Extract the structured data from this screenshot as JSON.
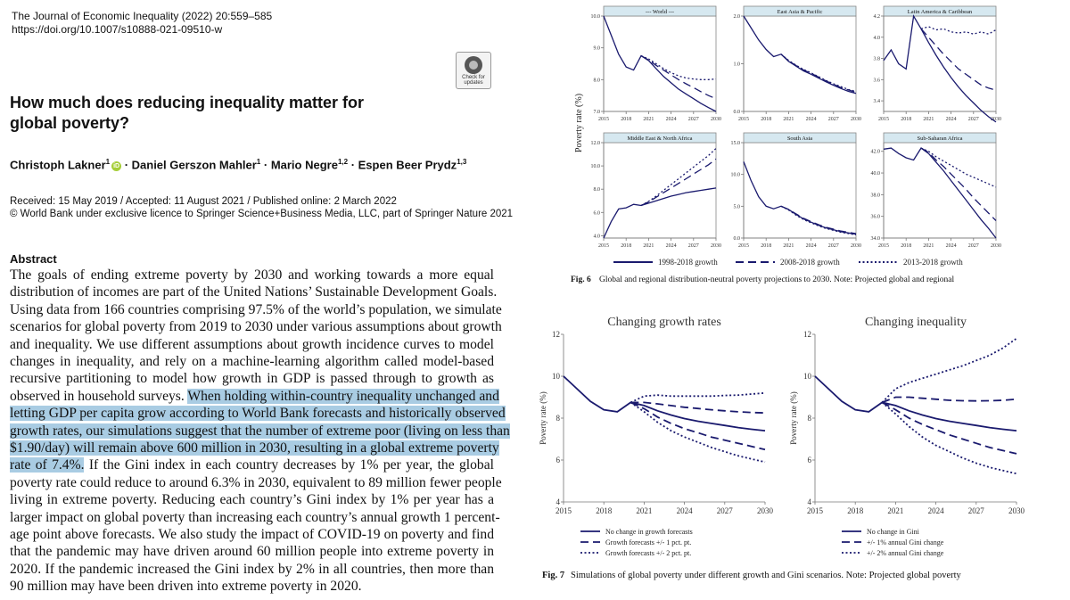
{
  "journal": "The Journal of Economic Inequality (2022) 20:559–585",
  "doi": "https://doi.org/10.1007/s10888-021-09510-w",
  "badge": "Check for updates",
  "title": "How much does reducing inequality matter for global poverty?",
  "authors": [
    {
      "name": "Christoph Lakner",
      "sup": "1",
      "orcid": true
    },
    {
      "name": "Daniel Gerszon Mahler",
      "sup": "1"
    },
    {
      "name": "Mario Negre",
      "sup": "1,2"
    },
    {
      "name": "Espen Beer Prydz",
      "sup": "1,3"
    }
  ],
  "orcid_mark": "iD",
  "author_sep": " · ",
  "received": "Received: 15 May 2019 / Accepted: 11 August 2021 / Published online: 2 March 2022",
  "license": "© World Bank under exclusive licence to Springer Science+Business Media, LLC, part of Springer Nature 2021",
  "abstract_heading": "Abstract",
  "abstract_lines": [
    [
      {
        "t": "The goals of ending extreme poverty by 2030 and working towards a more equal"
      }
    ],
    [
      {
        "t": "distribution of incomes are part of the United Nations’ Sustainable Development Goals."
      }
    ],
    [
      {
        "t": "Using data from 166 countries comprising 97.5% of the world’s population, we simulate"
      }
    ],
    [
      {
        "t": "scenarios for global poverty from 2019 to 2030 under various assumptions about growth"
      }
    ],
    [
      {
        "t": "and inequality. We use different assumptions about growth incidence curves to model"
      }
    ],
    [
      {
        "t": "changes in inequality, and rely on a machine-learning algorithm called model-based"
      }
    ],
    [
      {
        "t": "recursive partitioning to model how growth in GDP is passed through to growth as"
      }
    ],
    [
      {
        "t": "observed in household surveys. "
      },
      {
        "t": "When holding within-country inequality unchanged and",
        "hl": true
      }
    ],
    [
      {
        "t": "letting GDP per capita grow according to World Bank forecasts and historically observed",
        "hl": true
      }
    ],
    [
      {
        "t": "growth rates, our simulations suggest that the number of extreme poor (living on less than",
        "hl": true
      }
    ],
    [
      {
        "t": "$1.90/day) will remain above 600 million in 2030, resulting in a global extreme poverty",
        "hl": true
      }
    ],
    [
      {
        "t": "rate of 7.4%.",
        "hl": true
      },
      {
        "t": " If the Gini index in each country decreases by 1% per year, the global"
      }
    ],
    [
      {
        "t": "poverty rate could reduce to around 6.3% in 2030, equivalent to 89 million fewer people"
      }
    ],
    [
      {
        "t": "living in extreme poverty. Reducing each country’s Gini index by 1% per year has a"
      }
    ],
    [
      {
        "t": "larger impact on global poverty than increasing each country’s annual growth 1 percent-"
      }
    ],
    [
      {
        "t": "age point above forecasts. We also study the impact of COVID-19 on poverty and find"
      }
    ],
    [
      {
        "t": "that the pandemic may have driven around 60 million people into extreme poverty in"
      }
    ],
    [
      {
        "t": "2020. If the pandemic increased the Gini index by 2% in all countries, then more than"
      }
    ],
    [
      {
        "t": "90 million may have been driven into extreme poverty in 2020."
      }
    ]
  ],
  "fig6": {
    "ylabel": "Poverty rate (%)",
    "caption_label": "Fig. 6",
    "caption": "Global and regional distribution-neutral poverty projections to 2030. Note: Projected global and regional",
    "legend": [
      "1998-2018 growth",
      "2008-2018 growth",
      "2013-2018 growth"
    ],
    "xticks": [
      "2015",
      "2018",
      "2021",
      "2024",
      "2027",
      "2030"
    ]
  },
  "fig7": {
    "caption_label": "Fig. 7",
    "caption": "Simulations of global poverty under different growth and Gini scenarios. Note: Projected global poverty",
    "ylabel": "Poverty rate (%)",
    "xticks": [
      "2015",
      "2018",
      "2021",
      "2024",
      "2027",
      "2030"
    ],
    "yticks": [
      "4",
      "6",
      "8",
      "10",
      "12"
    ]
  },
  "chart_data": [
    {
      "type": "line",
      "title": "--- World ---",
      "x": [
        2015,
        2016,
        2017,
        2018,
        2019,
        2020,
        2021,
        2022,
        2023,
        2024,
        2025,
        2026,
        2027,
        2028,
        2029,
        2030
      ],
      "ylim": [
        7.0,
        10.0
      ],
      "yticks": [
        "7.0",
        "8.0",
        "9.0",
        "10.0"
      ],
      "series": [
        {
          "name": "1998-2018 growth",
          "values": [
            10.0,
            9.4,
            8.8,
            8.4,
            8.3,
            8.75,
            8.6,
            8.35,
            8.1,
            7.9,
            7.7,
            7.55,
            7.4,
            7.25,
            7.12,
            7.0
          ]
        },
        {
          "name": "2008-2018 growth",
          "values": [
            null,
            null,
            null,
            null,
            null,
            8.75,
            8.62,
            8.45,
            8.3,
            8.15,
            8.0,
            7.87,
            7.75,
            7.62,
            7.5,
            7.4
          ]
        },
        {
          "name": "2013-2018 growth",
          "values": [
            null,
            null,
            null,
            null,
            null,
            8.75,
            8.65,
            8.5,
            8.35,
            8.22,
            8.12,
            8.05,
            8.02,
            8.0,
            8.0,
            8.02
          ]
        }
      ]
    },
    {
      "type": "line",
      "title": "East Asia & Pacific",
      "x": [
        2015,
        2016,
        2017,
        2018,
        2019,
        2020,
        2021,
        2022,
        2023,
        2024,
        2025,
        2026,
        2027,
        2028,
        2029,
        2030
      ],
      "ylim": [
        0.0,
        2.0
      ],
      "yticks": [
        "0.0",
        "1.0",
        "2.0"
      ],
      "series": [
        {
          "name": "1998-2018 growth",
          "values": [
            2.0,
            1.75,
            1.5,
            1.3,
            1.15,
            1.2,
            1.05,
            0.95,
            0.85,
            0.78,
            0.7,
            0.62,
            0.55,
            0.48,
            0.42,
            0.38
          ]
        },
        {
          "name": "2008-2018 growth",
          "values": [
            null,
            null,
            null,
            null,
            null,
            1.2,
            1.06,
            0.96,
            0.87,
            0.8,
            0.72,
            0.64,
            0.57,
            0.5,
            0.45,
            0.4
          ]
        },
        {
          "name": "2013-2018 growth",
          "values": [
            null,
            null,
            null,
            null,
            null,
            1.2,
            1.07,
            0.97,
            0.88,
            0.81,
            0.73,
            0.65,
            0.58,
            0.52,
            0.46,
            0.42
          ]
        }
      ]
    },
    {
      "type": "line",
      "title": "Latin America & Caribbean",
      "x": [
        2015,
        2016,
        2017,
        2018,
        2019,
        2020,
        2021,
        2022,
        2023,
        2024,
        2025,
        2026,
        2027,
        2028,
        2029,
        2030
      ],
      "ylim": [
        3.3,
        4.2
      ],
      "yticks": [
        "3.4",
        "3.6",
        "3.8",
        "4.0",
        "4.2"
      ],
      "series": [
        {
          "name": "1998-2018 growth",
          "values": [
            3.78,
            3.88,
            3.75,
            3.7,
            4.2,
            4.08,
            3.95,
            3.83,
            3.72,
            3.62,
            3.53,
            3.45,
            3.38,
            3.31,
            3.25,
            3.2
          ]
        },
        {
          "name": "2008-2018 growth",
          "values": [
            null,
            null,
            null,
            null,
            null,
            4.08,
            4.0,
            3.92,
            3.84,
            3.77,
            3.7,
            3.65,
            3.6,
            3.55,
            3.52,
            3.5
          ]
        },
        {
          "name": "2013-2018 growth",
          "values": [
            null,
            null,
            null,
            null,
            null,
            4.08,
            4.1,
            4.07,
            4.08,
            4.05,
            4.04,
            4.05,
            4.03,
            4.05,
            4.03,
            4.07
          ]
        }
      ]
    },
    {
      "type": "line",
      "title": "Middle East & North Africa",
      "x": [
        2015,
        2016,
        2017,
        2018,
        2019,
        2020,
        2021,
        2022,
        2023,
        2024,
        2025,
        2026,
        2027,
        2028,
        2029,
        2030
      ],
      "ylim": [
        3.8,
        12.0
      ],
      "yticks": [
        "4.0",
        "6.0",
        "8.0",
        "10.0",
        "12.0"
      ],
      "series": [
        {
          "name": "1998-2018 growth",
          "values": [
            3.8,
            5.2,
            6.3,
            6.4,
            6.7,
            6.6,
            6.8,
            7.0,
            7.2,
            7.4,
            7.55,
            7.7,
            7.8,
            7.9,
            8.0,
            8.1
          ]
        },
        {
          "name": "2008-2018 growth",
          "values": [
            null,
            null,
            null,
            null,
            null,
            6.6,
            6.9,
            7.3,
            7.7,
            8.1,
            8.5,
            8.9,
            9.3,
            9.7,
            10.1,
            10.6
          ]
        },
        {
          "name": "2013-2018 growth",
          "values": [
            null,
            null,
            null,
            null,
            null,
            6.6,
            6.95,
            7.4,
            7.9,
            8.4,
            8.9,
            9.4,
            9.9,
            10.4,
            10.9,
            11.5
          ]
        }
      ]
    },
    {
      "type": "line",
      "title": "South Asia",
      "x": [
        2015,
        2016,
        2017,
        2018,
        2019,
        2020,
        2021,
        2022,
        2023,
        2024,
        2025,
        2026,
        2027,
        2028,
        2029,
        2030
      ],
      "ylim": [
        0.0,
        15.0
      ],
      "yticks": [
        "0.0",
        "5.0",
        "10.0",
        "15.0"
      ],
      "series": [
        {
          "name": "1998-2018 growth",
          "values": [
            12.0,
            9.0,
            6.5,
            5.0,
            4.6,
            5.0,
            4.5,
            3.7,
            3.0,
            2.5,
            2.0,
            1.6,
            1.3,
            1.0,
            0.8,
            0.6
          ]
        },
        {
          "name": "2008-2018 growth",
          "values": [
            null,
            null,
            null,
            null,
            null,
            5.0,
            4.5,
            3.8,
            3.1,
            2.6,
            2.1,
            1.7,
            1.4,
            1.1,
            0.9,
            0.7
          ]
        },
        {
          "name": "2013-2018 growth",
          "values": [
            null,
            null,
            null,
            null,
            null,
            5.0,
            4.4,
            3.6,
            2.9,
            2.4,
            1.9,
            1.5,
            1.2,
            0.9,
            0.7,
            0.5
          ]
        }
      ]
    },
    {
      "type": "line",
      "title": "Sub-Saharan Africa",
      "x": [
        2015,
        2016,
        2017,
        2018,
        2019,
        2020,
        2021,
        2022,
        2023,
        2024,
        2025,
        2026,
        2027,
        2028,
        2029,
        2030
      ],
      "ylim": [
        34.0,
        42.8
      ],
      "yticks": [
        "34.0",
        "36.0",
        "38.0",
        "40.0",
        "42.0"
      ],
      "series": [
        {
          "name": "1998-2018 growth",
          "values": [
            42.2,
            42.3,
            41.8,
            41.4,
            41.2,
            42.3,
            41.8,
            41.0,
            40.2,
            39.3,
            38.4,
            37.5,
            36.6,
            35.7,
            34.9,
            34.0
          ]
        },
        {
          "name": "2008-2018 growth",
          "values": [
            null,
            null,
            null,
            null,
            null,
            42.3,
            41.9,
            41.2,
            40.6,
            39.9,
            39.2,
            38.5,
            37.7,
            37.0,
            36.3,
            35.6
          ]
        },
        {
          "name": "2013-2018 growth",
          "values": [
            null,
            null,
            null,
            null,
            null,
            42.3,
            42.0,
            41.5,
            41.1,
            40.7,
            40.3,
            39.9,
            39.6,
            39.3,
            39.0,
            38.7
          ]
        }
      ]
    },
    {
      "type": "line",
      "title": "Changing growth rates",
      "x": [
        2015,
        2016,
        2017,
        2018,
        2019,
        2020,
        2021,
        2022,
        2023,
        2024,
        2025,
        2026,
        2027,
        2028,
        2029,
        2030
      ],
      "ylim": [
        4,
        12
      ],
      "series": [
        {
          "name": "No change in growth forecasts",
          "values": [
            10.0,
            9.4,
            8.8,
            8.4,
            8.3,
            8.75,
            8.6,
            8.35,
            8.15,
            7.98,
            7.85,
            7.75,
            7.65,
            7.55,
            7.47,
            7.4
          ]
        },
        {
          "name": "Growth forecasts +/- 1 pct. pt.",
          "values": [
            null,
            null,
            null,
            null,
            null,
            8.75,
            8.75,
            8.68,
            8.6,
            8.52,
            8.46,
            8.4,
            8.35,
            8.3,
            8.27,
            8.25
          ]
        },
        {
          "name": "Growth forecasts +/- 1 pct. pt. (lower)",
          "values": [
            null,
            null,
            null,
            null,
            null,
            8.75,
            8.45,
            8.05,
            7.75,
            7.5,
            7.3,
            7.1,
            6.95,
            6.8,
            6.65,
            6.5
          ]
        },
        {
          "name": "Growth forecasts +/- 2 pct. pt.",
          "values": [
            null,
            null,
            null,
            null,
            null,
            8.75,
            9.05,
            9.1,
            9.05,
            9.05,
            9.05,
            9.05,
            9.08,
            9.1,
            9.15,
            9.2
          ]
        },
        {
          "name": "Growth forecasts +/- 2 pct. pt. (lower)",
          "values": [
            null,
            null,
            null,
            null,
            null,
            8.75,
            8.3,
            7.8,
            7.4,
            7.1,
            6.85,
            6.6,
            6.4,
            6.2,
            6.05,
            5.9
          ]
        }
      ]
    },
    {
      "type": "line",
      "title": "Changing inequality",
      "x": [
        2015,
        2016,
        2017,
        2018,
        2019,
        2020,
        2021,
        2022,
        2023,
        2024,
        2025,
        2026,
        2027,
        2028,
        2029,
        2030
      ],
      "ylim": [
        4,
        12
      ],
      "series": [
        {
          "name": "No change in Gini",
          "values": [
            10.0,
            9.4,
            8.8,
            8.4,
            8.3,
            8.75,
            8.6,
            8.35,
            8.15,
            7.98,
            7.85,
            7.75,
            7.65,
            7.55,
            7.47,
            7.4
          ]
        },
        {
          "name": "+/- 1% annual Gini change",
          "values": [
            null,
            null,
            null,
            null,
            null,
            8.75,
            9.0,
            9.0,
            8.95,
            8.9,
            8.85,
            8.83,
            8.82,
            8.83,
            8.85,
            8.9
          ]
        },
        {
          "name": "+/- 1% annual Gini change (lower)",
          "values": [
            null,
            null,
            null,
            null,
            null,
            8.75,
            8.4,
            8.0,
            7.7,
            7.45,
            7.2,
            7.0,
            6.8,
            6.6,
            6.45,
            6.3
          ]
        },
        {
          "name": "+/- 2% annual Gini change",
          "values": [
            null,
            null,
            null,
            null,
            null,
            8.75,
            9.4,
            9.7,
            9.9,
            10.1,
            10.3,
            10.5,
            10.75,
            11.0,
            11.35,
            11.8
          ]
        },
        {
          "name": "+/- 2% annual Gini change (lower)",
          "values": [
            null,
            null,
            null,
            null,
            null,
            8.75,
            8.2,
            7.6,
            7.1,
            6.7,
            6.4,
            6.1,
            5.85,
            5.65,
            5.5,
            5.35
          ]
        }
      ]
    }
  ],
  "legend7a": [
    "No change in growth forecasts",
    "Growth forecasts +/- 1 pct. pt.",
    "Growth forecasts +/- 2 pct. pt."
  ],
  "legend7b": [
    "No change in Gini",
    "+/- 1% annual Gini change",
    "+/- 2% annual Gini change"
  ],
  "colors": {
    "line": "#1a1a6e",
    "highlight": "#a9cce3",
    "strip": "#d6e8f0"
  }
}
